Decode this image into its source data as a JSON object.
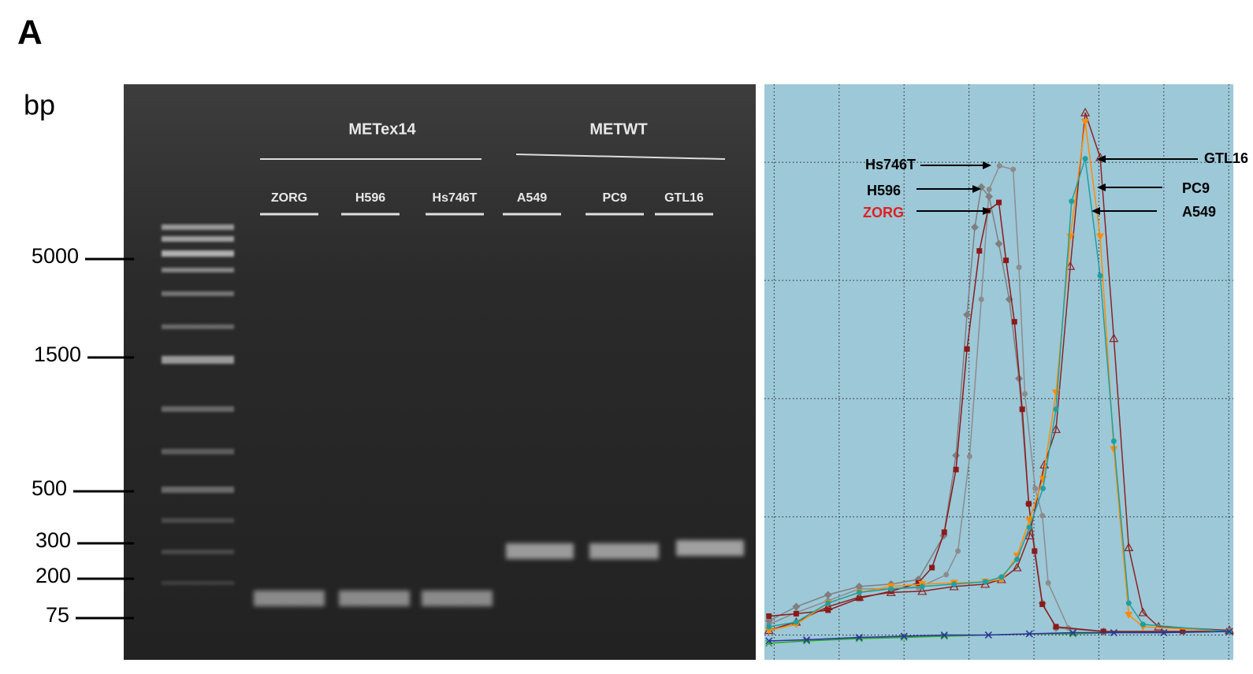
{
  "panel_label": "A",
  "gel": {
    "unit_label": "bp",
    "ladder": [
      5000,
      1500,
      500,
      300,
      200,
      75
    ],
    "groups": [
      {
        "label": "METex14",
        "lanes": [
          "ZORG",
          "H596",
          "Hs746T"
        ]
      },
      {
        "label": "METWT",
        "lanes": [
          "A549",
          "PC9",
          "GTL16"
        ]
      }
    ]
  },
  "chart_data": {
    "type": "line",
    "xlim": [
      -0.15,
      7.07
    ],
    "ylim": [
      -0.21,
      4.66
    ],
    "grid": true,
    "background": "#9dc8d8",
    "series": [
      {
        "name": "Hs746T",
        "color": "#8c8c8c",
        "label_color": "#000000",
        "marker": "circle",
        "x": [
          -0.08,
          0.34,
          0.83,
          1.31,
          1.8,
          2.22,
          2.65,
          2.83,
          3.01,
          3.19,
          3.31,
          3.47,
          3.68,
          3.77,
          3.86,
          4.02,
          4.13,
          4.22,
          4.53,
          5.07,
          7.01
        ],
        "values": [
          0.09,
          0.19,
          0.29,
          0.39,
          0.39,
          0.4,
          0.51,
          0.71,
          1.51,
          2.84,
          3.77,
          3.97,
          3.94,
          3.11,
          2.04,
          1.24,
          1.01,
          0.44,
          0.06,
          0.03,
          0.03
        ]
      },
      {
        "name": "H596",
        "color": "#7f7f7f",
        "label_color": "#000000",
        "marker": "diamond",
        "x": [
          -0.08,
          0.34,
          0.83,
          1.31,
          1.8,
          2.22,
          2.61,
          2.8,
          2.97,
          3.09,
          3.19,
          3.31,
          3.46,
          3.62,
          3.77,
          3.92,
          4.13,
          4.34,
          5.07,
          7.01
        ],
        "values": [
          0.12,
          0.24,
          0.34,
          0.41,
          0.43,
          0.47,
          0.84,
          1.52,
          2.71,
          3.45,
          3.79,
          3.71,
          3.31,
          2.84,
          2.17,
          1.11,
          0.27,
          0.06,
          0.03,
          0.03
        ]
      },
      {
        "name": "ZORG",
        "color": "#8b1a1a",
        "label_color": "#e02020",
        "marker": "square",
        "x": [
          -0.08,
          0.34,
          0.83,
          1.31,
          1.8,
          2.22,
          2.43,
          2.62,
          2.8,
          2.97,
          3.16,
          3.29,
          3.46,
          3.57,
          3.7,
          3.82,
          3.92,
          4.01,
          4.13,
          4.34,
          5.07,
          6.29,
          7.01
        ],
        "values": [
          0.16,
          0.18,
          0.21,
          0.31,
          0.37,
          0.44,
          0.57,
          0.87,
          1.4,
          2.42,
          3.25,
          3.59,
          3.66,
          3.17,
          2.65,
          1.91,
          1.11,
          0.71,
          0.26,
          0.07,
          0.03,
          0.03,
          0.03
        ]
      },
      {
        "name": "GTL16",
        "color": "#8b2323",
        "label_color": "#000000",
        "marker": "triangle-open",
        "x": [
          -0.08,
          0.34,
          0.83,
          1.31,
          1.8,
          2.28,
          2.77,
          3.25,
          3.5,
          3.74,
          3.93,
          4.16,
          4.34,
          4.56,
          4.79,
          5.02,
          5.23,
          5.46,
          5.68,
          5.92,
          7.01
        ],
        "values": [
          0.04,
          0.11,
          0.24,
          0.32,
          0.36,
          0.37,
          0.41,
          0.43,
          0.47,
          0.57,
          0.84,
          1.44,
          1.74,
          3.12,
          4.42,
          4.04,
          2.51,
          0.74,
          0.19,
          0.07,
          0.04
        ]
      },
      {
        "name": "PC9",
        "color": "#ff8c00",
        "label_color": "#000000",
        "marker": "triangle-down",
        "x": [
          -0.08,
          0.34,
          0.83,
          1.31,
          1.8,
          2.28,
          2.77,
          3.25,
          3.5,
          3.74,
          3.93,
          4.14,
          4.34,
          4.56,
          4.79,
          5.02,
          5.23,
          5.46,
          5.68,
          7.01
        ],
        "values": [
          0.04,
          0.09,
          0.27,
          0.36,
          0.41,
          0.43,
          0.44,
          0.45,
          0.47,
          0.67,
          0.97,
          1.32,
          2.05,
          3.37,
          4.34,
          3.37,
          1.57,
          0.17,
          0.07,
          0.03
        ]
      },
      {
        "name": "A549",
        "color": "#1fa0a0",
        "label_color": "#000000",
        "marker": "circle",
        "x": [
          -0.08,
          0.34,
          0.83,
          1.31,
          1.8,
          2.28,
          2.77,
          3.25,
          3.5,
          3.74,
          3.93,
          4.14,
          4.34,
          4.58,
          4.79,
          5.02,
          5.23,
          5.46,
          5.68,
          7.01
        ],
        "values": [
          0.07,
          0.11,
          0.27,
          0.36,
          0.39,
          0.41,
          0.43,
          0.45,
          0.49,
          0.64,
          0.91,
          1.24,
          1.91,
          3.67,
          4.03,
          3.04,
          1.64,
          0.27,
          0.09,
          0.03
        ]
      },
      {
        "color": "#22aa22",
        "marker": "cross",
        "x": [
          -0.08,
          0.5,
          1.31,
          2.0,
          2.62,
          3.3,
          3.93,
          4.6,
          5.23,
          6.0,
          7.01
        ],
        "values": [
          -0.07,
          -0.05,
          -0.03,
          -0.02,
          -0.01,
          0.0,
          0.01,
          0.01,
          0.02,
          0.02,
          0.03
        ]
      },
      {
        "color": "#3030a0",
        "marker": "cross",
        "x": [
          -0.08,
          0.5,
          1.31,
          2.0,
          2.62,
          3.3,
          3.93,
          4.6,
          5.23,
          6.0,
          7.01
        ],
        "values": [
          -0.05,
          -0.04,
          -0.02,
          -0.01,
          0.0,
          0.0,
          0.01,
          0.02,
          0.02,
          0.02,
          0.03
        ]
      }
    ]
  }
}
